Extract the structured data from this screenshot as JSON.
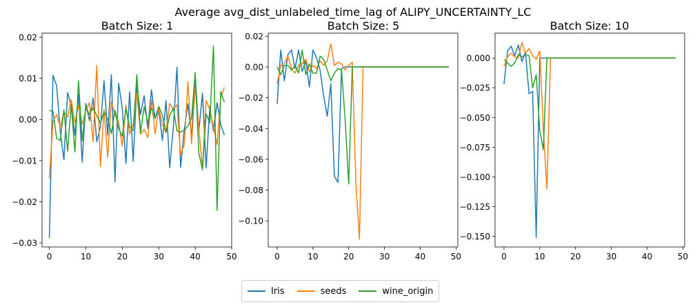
{
  "figure": {
    "title": "Average avg_dist_unlabeled_time_lag of ALIPY_UNCERTAINTY_LC"
  },
  "legend": {
    "placement": "bottom-center",
    "items": [
      {
        "name": "Iris",
        "color": "#1f77b4"
      },
      {
        "name": "seeds",
        "color": "#ff7f0e"
      },
      {
        "name": "wine_origin",
        "color": "#2ca02c"
      }
    ]
  },
  "chart_data": [
    {
      "type": "line",
      "title": "Batch Size: 1",
      "xlabel": "",
      "ylabel": "",
      "xlim": [
        -2,
        50
      ],
      "ylim": [
        -0.031,
        0.021
      ],
      "xticks": [
        0,
        10,
        20,
        30,
        40,
        50
      ],
      "yticks": [
        -0.03,
        -0.02,
        -0.01,
        0.0,
        0.01,
        0.02
      ],
      "ytick_labels": [
        "−0.03",
        "−0.02",
        "−0.01",
        "0.00",
        "0.01",
        "0.02"
      ],
      "series": [
        {
          "name": "Iris",
          "color": "#1f77b4",
          "x": [
            0,
            1,
            2,
            3,
            4,
            5,
            6,
            7,
            8,
            9,
            10,
            11,
            12,
            13,
            14,
            15,
            16,
            17,
            18,
            19,
            20,
            21,
            22,
            23,
            24,
            25,
            26,
            27,
            28,
            29,
            30,
            31,
            32,
            33,
            34,
            35,
            36,
            37,
            38,
            39,
            40,
            41,
            42,
            43,
            44,
            45,
            46,
            47,
            48
          ],
          "y": [
            -0.0288,
            0.0107,
            0.0082,
            -0.003,
            -0.0098,
            0.0065,
            0.0034,
            -0.0038,
            0.0062,
            -0.0104,
            0.0039,
            -0.0003,
            0.0052,
            -0.0054,
            -0.0018,
            0.0094,
            -0.0038,
            0.0109,
            -0.0152,
            0.0088,
            0.0028,
            -0.0107,
            0.0067,
            -0.0102,
            0.0084,
            0.0012,
            0.0058,
            -0.0022,
            0.0072,
            0.0002,
            0.0025,
            -0.0051,
            0.0046,
            -0.0117,
            -0.002,
            0.0127,
            -0.0116,
            -0.0025,
            0.0038,
            -0.0041,
            0.0106,
            -0.0027,
            0.0064,
            -0.0118,
            0.0031,
            -0.0028,
            0.0041,
            -0.0012,
            -0.0038
          ]
        },
        {
          "name": "seeds",
          "color": "#ff7f0e",
          "x": [
            0,
            1,
            2,
            3,
            4,
            5,
            6,
            7,
            8,
            9,
            10,
            11,
            12,
            13,
            14,
            15,
            16,
            17,
            18,
            19,
            20,
            21,
            22,
            23,
            24,
            25,
            26,
            27,
            28,
            29,
            30,
            31,
            32,
            33,
            34,
            35,
            36,
            37,
            38,
            39,
            40,
            41,
            42,
            43,
            44,
            45,
            46,
            47,
            48
          ],
          "y": [
            -0.0143,
            -0.0005,
            0.0012,
            -0.0019,
            0.0018,
            0.0006,
            0.0048,
            -0.0008,
            0.0034,
            -0.0012,
            0.0022,
            0.0041,
            -0.0054,
            0.0131,
            -0.0114,
            0.0024,
            -0.0092,
            0.0044,
            0.0012,
            -0.0006,
            -0.0065,
            0.0035,
            -0.0035,
            -0.0011,
            0.0064,
            -0.0036,
            -0.0024,
            -0.0044,
            0.0048,
            -0.0035,
            0.0028,
            -0.0012,
            -0.0032,
            0.0039,
            0.0025,
            0.0036,
            -0.0085,
            -0.0061,
            0.0092,
            -0.0059,
            0.0082,
            -0.0024,
            -0.0118,
            0.0046,
            0.0025,
            -0.0018,
            -0.0061,
            0.0052,
            0.0078
          ]
        },
        {
          "name": "wine_origin",
          "color": "#2ca02c",
          "x": [
            0,
            1,
            2,
            3,
            4,
            5,
            6,
            7,
            8,
            9,
            10,
            11,
            12,
            13,
            14,
            15,
            16,
            17,
            18,
            19,
            20,
            21,
            22,
            23,
            24,
            25,
            26,
            27,
            28,
            29,
            30,
            31,
            32,
            33,
            34,
            35,
            36,
            37,
            38,
            39,
            40,
            41,
            42,
            43,
            44,
            45,
            46,
            47,
            48
          ],
          "y": [
            0.0022,
            0.002,
            -0.0046,
            -0.0051,
            0.0024,
            -0.0077,
            0.0036,
            -0.0079,
            0.0094,
            -0.0052,
            0.0032,
            0.0012,
            0.0028,
            0.0009,
            -0.0009,
            0.0019,
            0.0001,
            -0.0034,
            0.0022,
            -0.0022,
            -0.0041,
            0.0026,
            -0.0018,
            -0.0027,
            0.0109,
            -0.0032,
            0.0031,
            -0.0007,
            0.0028,
            0.0003,
            0.0032,
            0.0011,
            -0.0031,
            0.0009,
            0.0028,
            -0.0028,
            -0.0031,
            -0.0026,
            -0.0016,
            0.0004,
            0.0114,
            -0.0082,
            -0.0122,
            0.0014,
            -0.0008,
            0.0179,
            -0.0221,
            0.0068,
            0.0042
          ]
        }
      ]
    },
    {
      "type": "line",
      "title": "Batch Size: 5",
      "xlabel": "",
      "ylabel": "",
      "xlim": [
        -2.5,
        50.5
      ],
      "ylim": [
        -0.117,
        0.022
      ],
      "xticks": [
        0,
        10,
        20,
        30,
        40,
        50
      ],
      "yticks": [
        -0.1,
        -0.08,
        -0.06,
        -0.04,
        -0.02,
        0.0,
        0.02
      ],
      "ytick_labels": [
        "−0.10",
        "−0.08",
        "−0.06",
        "−0.04",
        "−0.02",
        "0.00",
        "0.02"
      ],
      "series": [
        {
          "name": "Iris",
          "color": "#1f77b4",
          "x": [
            0,
            1,
            2,
            3,
            4,
            5,
            6,
            7,
            8,
            9,
            10,
            11,
            12,
            13,
            14,
            15,
            16,
            17,
            18,
            19,
            20,
            21,
            22,
            23,
            24,
            25,
            26,
            27,
            28,
            29,
            30,
            31,
            32,
            33,
            34,
            35,
            36,
            37,
            38,
            39,
            40,
            41,
            42,
            43,
            44,
            45,
            46,
            47,
            48
          ],
          "y": [
            -0.024,
            0.011,
            -0.009,
            0.008,
            0.011,
            -0.001,
            0.011,
            -0.003,
            0.004,
            -0.013,
            0.011,
            0.006,
            -0.002,
            -0.019,
            -0.032,
            -0.011,
            -0.071,
            -0.075,
            -0.001,
            0.0,
            0.0,
            0.0,
            0.0,
            0.0,
            0.0,
            0.0,
            0.0,
            0.0,
            0.0,
            0.0,
            0.0,
            0.0,
            0.0,
            0.0,
            0.0,
            0.0,
            0.0,
            0.0,
            0.0,
            0.0,
            0.0,
            0.0,
            0.0,
            0.0,
            0.0,
            0.0,
            0.0,
            0.0,
            0.0
          ]
        },
        {
          "name": "seeds",
          "color": "#ff7f0e",
          "x": [
            0,
            1,
            2,
            3,
            4,
            5,
            6,
            7,
            8,
            9,
            10,
            11,
            12,
            13,
            14,
            15,
            16,
            17,
            18,
            19,
            20,
            21,
            22,
            23,
            24,
            25,
            26,
            27,
            28,
            29,
            30,
            31,
            32,
            33,
            34,
            35,
            36,
            37,
            38,
            39,
            40,
            41,
            42,
            43,
            44,
            45,
            46,
            47,
            48
          ],
          "y": [
            -0.011,
            0.001,
            0.002,
            0.007,
            -0.001,
            -0.004,
            0.001,
            0.002,
            0.005,
            -0.003,
            0.001,
            -0.001,
            0.004,
            0.001,
            0.004,
            0.015,
            0.001,
            0.003,
            0.002,
            -0.002,
            0.001,
            0.003,
            -0.075,
            -0.112,
            0.0,
            0.0,
            0.0,
            0.0,
            0.0,
            0.0,
            0.0,
            0.0,
            0.0,
            0.0,
            0.0,
            0.0,
            0.0,
            0.0,
            0.0,
            0.0,
            0.0,
            0.0,
            0.0,
            0.0,
            0.0,
            0.0,
            0.0,
            0.0,
            0.0
          ]
        },
        {
          "name": "wine_origin",
          "color": "#2ca02c",
          "x": [
            0,
            1,
            2,
            3,
            4,
            5,
            6,
            7,
            8,
            9,
            10,
            11,
            12,
            13,
            14,
            15,
            16,
            17,
            18,
            19,
            20,
            21,
            22,
            23,
            24,
            25,
            26,
            27,
            28,
            29,
            30,
            31,
            32,
            33,
            34,
            35,
            36,
            37,
            38,
            39,
            40,
            41,
            42,
            43,
            44,
            45,
            46,
            47,
            48
          ],
          "y": [
            0.0,
            -0.005,
            0.001,
            0.001,
            -0.002,
            0.001,
            -0.004,
            0.011,
            -0.005,
            0.002,
            -0.004,
            -0.004,
            0.007,
            0.005,
            -0.002,
            -0.009,
            -0.004,
            -0.001,
            -0.002,
            -0.034,
            -0.076,
            0.0,
            0.0,
            0.0,
            0.0,
            0.0,
            0.0,
            0.0,
            0.0,
            0.0,
            0.0,
            0.0,
            0.0,
            0.0,
            0.0,
            0.0,
            0.0,
            0.0,
            0.0,
            0.0,
            0.0,
            0.0,
            0.0,
            0.0,
            0.0,
            0.0,
            0.0,
            0.0,
            0.0
          ]
        }
      ]
    },
    {
      "type": "line",
      "title": "Batch Size: 10",
      "xlabel": "",
      "ylabel": "",
      "xlim": [
        -2.5,
        50.5
      ],
      "ylim": [
        -0.159,
        0.021
      ],
      "xticks": [
        0,
        10,
        20,
        30,
        40,
        50
      ],
      "yticks": [
        -0.15,
        -0.125,
        -0.1,
        -0.075,
        -0.05,
        -0.025,
        0.0
      ],
      "ytick_labels": [
        "−0.150",
        "−0.125",
        "−0.100",
        "−0.075",
        "−0.050",
        "−0.025",
        "0.000"
      ],
      "series": [
        {
          "name": "Iris",
          "color": "#1f77b4",
          "x": [
            0,
            1,
            2,
            3,
            4,
            5,
            6,
            7,
            8,
            9,
            10,
            11,
            12,
            13,
            14,
            15,
            16,
            17,
            18,
            19,
            20,
            21,
            22,
            23,
            24,
            25,
            26,
            27,
            28,
            29,
            30,
            31,
            32,
            33,
            34,
            35,
            36,
            37,
            38,
            39,
            40,
            41,
            42,
            43,
            44,
            45,
            46,
            47,
            48
          ],
          "y": [
            -0.022,
            0.006,
            0.01,
            0.002,
            0.011,
            -0.003,
            0.005,
            -0.03,
            -0.028,
            -0.151,
            0.0,
            0.0,
            0.0,
            0.0,
            0.0,
            0.0,
            0.0,
            0.0,
            0.0,
            0.0,
            0.0,
            0.0,
            0.0,
            0.0,
            0.0,
            0.0,
            0.0,
            0.0,
            0.0,
            0.0,
            0.0,
            0.0,
            0.0,
            0.0,
            0.0,
            0.0,
            0.0,
            0.0,
            0.0,
            0.0,
            0.0,
            0.0,
            0.0,
            0.0,
            0.0,
            0.0,
            0.0,
            0.0,
            0.0
          ]
        },
        {
          "name": "seeds",
          "color": "#ff7f0e",
          "x": [
            0,
            1,
            2,
            3,
            4,
            5,
            6,
            7,
            8,
            9,
            10,
            11,
            12,
            13,
            14,
            15,
            16,
            17,
            18,
            19,
            20,
            21,
            22,
            23,
            24,
            25,
            26,
            27,
            28,
            29,
            30,
            31,
            32,
            33,
            34,
            35,
            36,
            37,
            38,
            39,
            40,
            41,
            42,
            43,
            44,
            45,
            46,
            47,
            48
          ],
          "y": [
            -0.007,
            0.001,
            0.004,
            0.001,
            0.0,
            0.013,
            0.004,
            0.008,
            0.002,
            -0.001,
            0.006,
            -0.06,
            -0.11,
            0.0,
            0.0,
            0.0,
            0.0,
            0.0,
            0.0,
            0.0,
            0.0,
            0.0,
            0.0,
            0.0,
            0.0,
            0.0,
            0.0,
            0.0,
            0.0,
            0.0,
            0.0,
            0.0,
            0.0,
            0.0,
            0.0,
            0.0,
            0.0,
            0.0,
            0.0,
            0.0,
            0.0,
            0.0,
            0.0,
            0.0,
            0.0,
            0.0,
            0.0,
            0.0,
            0.0
          ]
        },
        {
          "name": "wine_origin",
          "color": "#2ca02c",
          "x": [
            0,
            1,
            2,
            3,
            4,
            5,
            6,
            7,
            8,
            9,
            10,
            11,
            12,
            13,
            14,
            15,
            16,
            17,
            18,
            19,
            20,
            21,
            22,
            23,
            24,
            25,
            26,
            27,
            28,
            29,
            30,
            31,
            32,
            33,
            34,
            35,
            36,
            37,
            38,
            39,
            40,
            41,
            42,
            43,
            44,
            45,
            46,
            47,
            48
          ],
          "y": [
            -0.001,
            -0.004,
            -0.007,
            -0.004,
            0.003,
            0.001,
            0.003,
            0.002,
            -0.025,
            -0.014,
            -0.061,
            -0.077,
            0.0,
            0.0,
            0.0,
            0.0,
            0.0,
            0.0,
            0.0,
            0.0,
            0.0,
            0.0,
            0.0,
            0.0,
            0.0,
            0.0,
            0.0,
            0.0,
            0.0,
            0.0,
            0.0,
            0.0,
            0.0,
            0.0,
            0.0,
            0.0,
            0.0,
            0.0,
            0.0,
            0.0,
            0.0,
            0.0,
            0.0,
            0.0,
            0.0,
            0.0,
            0.0,
            0.0,
            0.0
          ]
        }
      ]
    }
  ]
}
